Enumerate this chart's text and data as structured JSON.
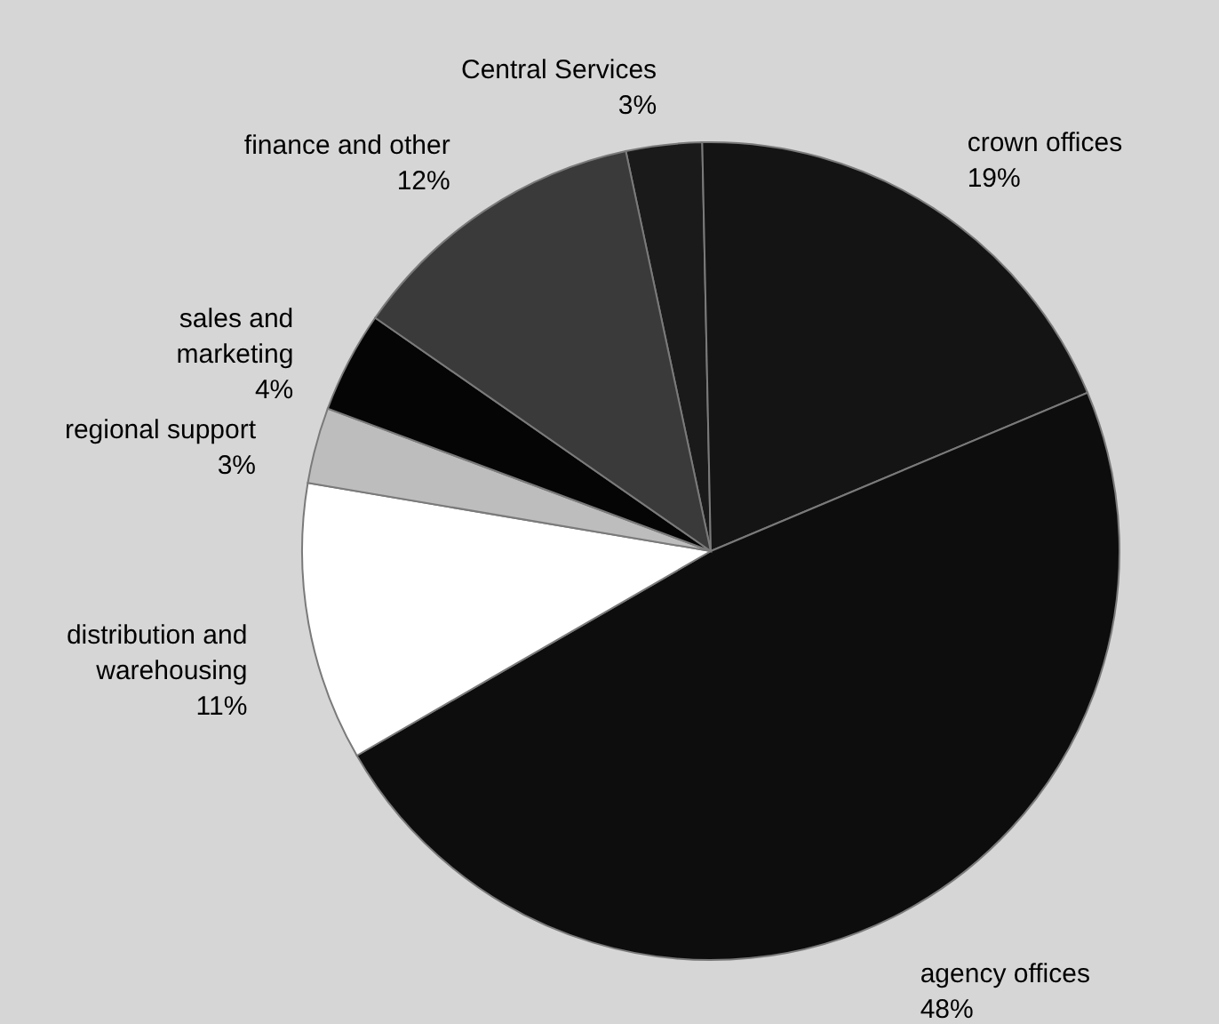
{
  "chart_data": {
    "type": "pie",
    "categories": [
      "Central Services",
      "crown offices",
      "agency offices",
      "distribution and warehousing",
      "regional support",
      "sales and marketing",
      "finance and other"
    ],
    "values": [
      3,
      19,
      48,
      11,
      3,
      4,
      12
    ],
    "value_labels": [
      "3%",
      "19%",
      "48%",
      "11%",
      "3%",
      "4%",
      "12%"
    ],
    "colors": [
      "#1a1a1a",
      "#141414",
      "#0d0d0d",
      "#ffffff",
      "#bdbdbd",
      "#050505",
      "#3a3a3a"
    ]
  }
}
